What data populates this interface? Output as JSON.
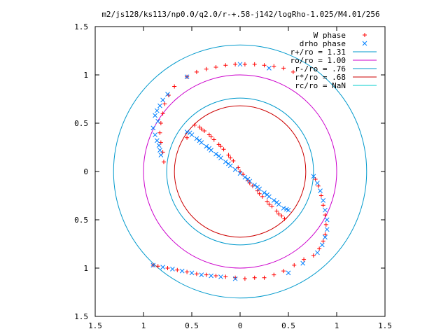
{
  "chart_data": {
    "type": "scatter",
    "title": "m2/js128/ks113/np0.0/q2.0/r-+.58-j142/logRho-1.025/M4.01/256",
    "xlabel": "",
    "ylabel": "",
    "xlim": [
      -1.5,
      1.5
    ],
    "ylim": [
      -1.5,
      1.5
    ],
    "x_ticks": [
      -1.5,
      -1,
      -0.5,
      0,
      0.5,
      1,
      1.5
    ],
    "y_ticks": [
      -1.5,
      -1,
      -0.5,
      0,
      0.5,
      1,
      1.5
    ],
    "x_tick_labels": [
      "1.5",
      "1",
      "0.5",
      "0",
      "0.5",
      "1",
      "1.5"
    ],
    "y_tick_labels": [
      "1.5",
      "1",
      "0.5",
      "0",
      "0.5",
      "1",
      "1.5"
    ],
    "grid": false,
    "legend_position": "top-right",
    "legend": [
      {
        "label": "W phase",
        "kind": "points",
        "marker": "plus",
        "color": "#ff0000"
      },
      {
        "label": "drho phase",
        "kind": "points",
        "marker": "cross",
        "color": "#0080ff"
      },
      {
        "label": "r+/ro = 1.31",
        "kind": "line",
        "color": "#0099cc"
      },
      {
        "label": "ro/ro = 1.00",
        "kind": "line",
        "color": "#cc00cc"
      },
      {
        "label": "r-/ro = .76",
        "kind": "line",
        "color": "#0099cc"
      },
      {
        "label": "r*/ro = .68",
        "kind": "line",
        "color": "#cc0000"
      },
      {
        "label": "rc/ro = NaN",
        "kind": "line",
        "color": "#00cccc"
      }
    ],
    "circles": [
      {
        "name": "r+/ro",
        "r": 1.31,
        "color": "#0099cc"
      },
      {
        "name": "ro/ro",
        "r": 1.0,
        "color": "#cc00cc"
      },
      {
        "name": "r-/ro",
        "r": 0.76,
        "color": "#0099cc"
      },
      {
        "name": "r*/ro",
        "r": 0.68,
        "color": "#cc0000"
      }
    ],
    "series": [
      {
        "name": "W phase",
        "color": "#ff0000",
        "marker": "plus",
        "points": [
          [
            -0.47,
            0.48
          ],
          [
            -0.42,
            0.46
          ],
          [
            -0.37,
            0.42
          ],
          [
            -0.32,
            0.38
          ],
          [
            -0.27,
            0.33
          ],
          [
            -0.22,
            0.28
          ],
          [
            -0.17,
            0.23
          ],
          [
            -0.12,
            0.17
          ],
          [
            -0.07,
            0.11
          ],
          [
            -0.02,
            0.04
          ],
          [
            0.03,
            -0.03
          ],
          [
            0.08,
            -0.09
          ],
          [
            0.13,
            -0.15
          ],
          [
            0.18,
            -0.2
          ],
          [
            0.23,
            -0.26
          ],
          [
            0.28,
            -0.31
          ],
          [
            0.33,
            -0.36
          ],
          [
            0.38,
            -0.41
          ],
          [
            0.43,
            -0.46
          ],
          [
            0.46,
            -0.49
          ],
          [
            -0.4,
            0.44
          ],
          [
            -0.3,
            0.36
          ],
          [
            -0.2,
            0.26
          ],
          [
            -0.1,
            0.14
          ],
          [
            0.0,
            0.0
          ],
          [
            0.1,
            -0.12
          ],
          [
            0.2,
            -0.23
          ],
          [
            0.3,
            -0.34
          ],
          [
            0.4,
            -0.44
          ],
          [
            -0.55,
            0.35
          ],
          [
            -0.55,
            0.98
          ],
          [
            -0.45,
            1.03
          ],
          [
            -0.35,
            1.06
          ],
          [
            -0.25,
            1.08
          ],
          [
            -0.15,
            1.1
          ],
          [
            -0.05,
            1.11
          ],
          [
            0.05,
            1.11
          ],
          [
            0.15,
            1.11
          ],
          [
            0.25,
            1.1
          ],
          [
            0.35,
            1.09
          ],
          [
            0.45,
            1.07
          ],
          [
            0.55,
            1.03
          ],
          [
            -0.68,
            0.88
          ],
          [
            -0.74,
            0.79
          ],
          [
            -0.78,
            0.7
          ],
          [
            -0.8,
            0.6
          ],
          [
            -0.82,
            0.5
          ],
          [
            -0.83,
            0.4
          ],
          [
            -0.82,
            0.3
          ],
          [
            -0.8,
            0.2
          ],
          [
            -0.79,
            0.1
          ],
          [
            0.78,
            -0.08
          ],
          [
            0.81,
            -0.15
          ],
          [
            0.84,
            -0.25
          ],
          [
            0.86,
            -0.35
          ],
          [
            0.88,
            -0.45
          ],
          [
            0.89,
            -0.55
          ],
          [
            0.88,
            -0.65
          ],
          [
            0.86,
            -0.72
          ],
          [
            0.82,
            -0.8
          ],
          [
            0.76,
            -0.87
          ],
          [
            0.66,
            -0.91
          ],
          [
            0.56,
            -0.97
          ],
          [
            0.45,
            -1.03
          ],
          [
            0.35,
            -1.07
          ],
          [
            0.25,
            -1.1
          ],
          [
            0.15,
            -1.1
          ],
          [
            0.05,
            -1.11
          ],
          [
            -0.05,
            -1.1
          ],
          [
            -0.15,
            -1.09
          ],
          [
            -0.25,
            -1.08
          ],
          [
            -0.35,
            -1.07
          ],
          [
            -0.45,
            -1.06
          ],
          [
            -0.55,
            -1.04
          ],
          [
            -0.65,
            -1.02
          ],
          [
            -0.75,
            -1.0
          ],
          [
            -0.85,
            -0.98
          ],
          [
            -0.9,
            -0.97
          ]
        ]
      },
      {
        "name": "drho phase",
        "color": "#0080ff",
        "marker": "cross",
        "points": [
          [
            -0.55,
            0.41
          ],
          [
            -0.5,
            0.38
          ],
          [
            -0.45,
            0.34
          ],
          [
            -0.4,
            0.3
          ],
          [
            -0.35,
            0.26
          ],
          [
            -0.3,
            0.22
          ],
          [
            -0.25,
            0.18
          ],
          [
            -0.2,
            0.14
          ],
          [
            -0.15,
            0.1
          ],
          [
            -0.1,
            0.06
          ],
          [
            -0.05,
            0.02
          ],
          [
            0.0,
            -0.02
          ],
          [
            0.05,
            -0.06
          ],
          [
            0.1,
            -0.1
          ],
          [
            0.15,
            -0.14
          ],
          [
            0.2,
            -0.18
          ],
          [
            0.25,
            -0.22
          ],
          [
            0.3,
            -0.26
          ],
          [
            0.35,
            -0.3
          ],
          [
            0.4,
            -0.34
          ],
          [
            0.45,
            -0.38
          ],
          [
            0.5,
            -0.4
          ],
          [
            -0.52,
            0.4
          ],
          [
            -0.42,
            0.32
          ],
          [
            -0.32,
            0.24
          ],
          [
            -0.22,
            0.16
          ],
          [
            -0.12,
            0.08
          ],
          [
            0.08,
            -0.08
          ],
          [
            0.18,
            -0.16
          ],
          [
            0.28,
            -0.24
          ],
          [
            0.38,
            -0.32
          ],
          [
            0.48,
            -0.39
          ],
          [
            -0.85,
            0.52
          ],
          [
            -0.9,
            0.45
          ],
          [
            -0.88,
            0.38
          ],
          [
            -0.86,
            0.32
          ],
          [
            -0.84,
            0.27
          ],
          [
            -0.83,
            0.22
          ],
          [
            -0.82,
            0.17
          ],
          [
            -0.88,
            0.58
          ],
          [
            -0.86,
            0.63
          ],
          [
            -0.83,
            0.68
          ],
          [
            -0.8,
            0.74
          ],
          [
            -0.75,
            0.8
          ],
          [
            -0.55,
            0.98
          ],
          [
            0.0,
            1.11
          ],
          [
            0.3,
            1.07
          ],
          [
            0.76,
            -0.05
          ],
          [
            0.8,
            -0.12
          ],
          [
            0.83,
            -0.2
          ],
          [
            0.86,
            -0.3
          ],
          [
            0.88,
            -0.4
          ],
          [
            0.9,
            -0.5
          ],
          [
            0.9,
            -0.6
          ],
          [
            0.88,
            -0.68
          ],
          [
            0.85,
            -0.76
          ],
          [
            0.8,
            -0.84
          ],
          [
            -0.9,
            -0.97
          ],
          [
            -0.8,
            -0.99
          ],
          [
            -0.7,
            -1.01
          ],
          [
            -0.6,
            -1.03
          ],
          [
            -0.5,
            -1.05
          ],
          [
            -0.4,
            -1.07
          ],
          [
            -0.3,
            -1.08
          ],
          [
            -0.2,
            -1.09
          ],
          [
            -0.05,
            -1.11
          ],
          [
            0.5,
            -1.05
          ],
          [
            0.65,
            -0.95
          ]
        ]
      }
    ]
  }
}
